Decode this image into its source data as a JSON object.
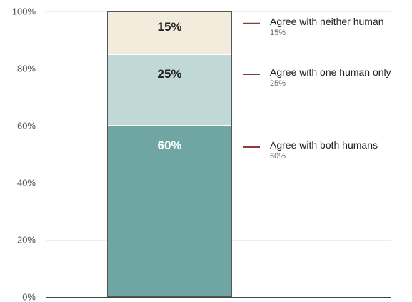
{
  "chart_data": {
    "type": "bar",
    "stacked": true,
    "categories": [
      ""
    ],
    "series": [
      {
        "name": "Agree with both humans",
        "values": [
          60
        ],
        "label": "60%",
        "legend_value": "60%",
        "color": "#6fa6a3",
        "label_color": "#ffffff"
      },
      {
        "name": "Agree with one human only",
        "values": [
          25
        ],
        "label": "25%",
        "legend_value": "25%",
        "color": "#c0d9d6",
        "label_color": "#222222"
      },
      {
        "name": "Agree with neither human",
        "values": [
          15
        ],
        "label": "15%",
        "legend_value": "15%",
        "color": "#f3ecdc",
        "label_color": "#222222"
      }
    ],
    "ylim": [
      0,
      100
    ],
    "yticks": [
      0,
      20,
      40,
      60,
      80,
      100
    ],
    "ytick_labels": [
      "0%",
      "20%",
      "40%",
      "60%",
      "80%",
      "100%"
    ],
    "grid": true,
    "legend_placement": "right",
    "legend_marker_color": "#8b3a3a",
    "title": "",
    "xlabel": "",
    "ylabel": ""
  }
}
